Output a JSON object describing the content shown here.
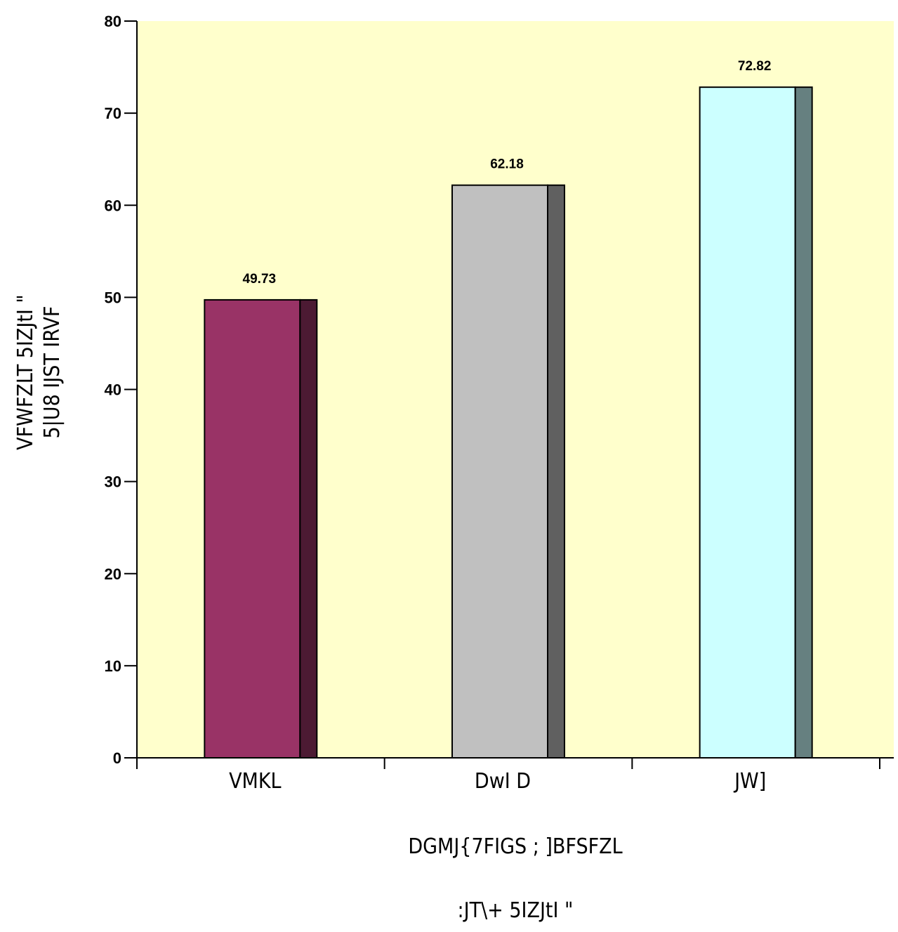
{
  "chart_data": {
    "type": "bar",
    "categories": [
      "VMKL",
      "DwI D",
      "JW]"
    ],
    "values": [
      49.73,
      62.18,
      72.82
    ],
    "data_labels": [
      "49.73",
      "62.18",
      "72.82"
    ],
    "xlabel": "DGMJ{7FIGS ; ]BFSFZL",
    "xlabel2": ":JT\\+ 5IZJtI \"",
    "ylabel_lines": [
      "VFWFZLT 5IZJtI \"",
      "5|U8 IJST IRVF"
    ],
    "ylim": [
      0,
      80
    ],
    "yticks": [
      0,
      10,
      20,
      30,
      40,
      50,
      60,
      70,
      80
    ],
    "grid": false,
    "colors": {
      "plot_background": "#FFFFCC",
      "bar_fronts": [
        "#993366",
        "#C0C0C0",
        "#CCFFFF"
      ],
      "bar_sides": [
        "#4C1A33",
        "#606060",
        "#668080"
      ],
      "outline": "#000000"
    }
  }
}
